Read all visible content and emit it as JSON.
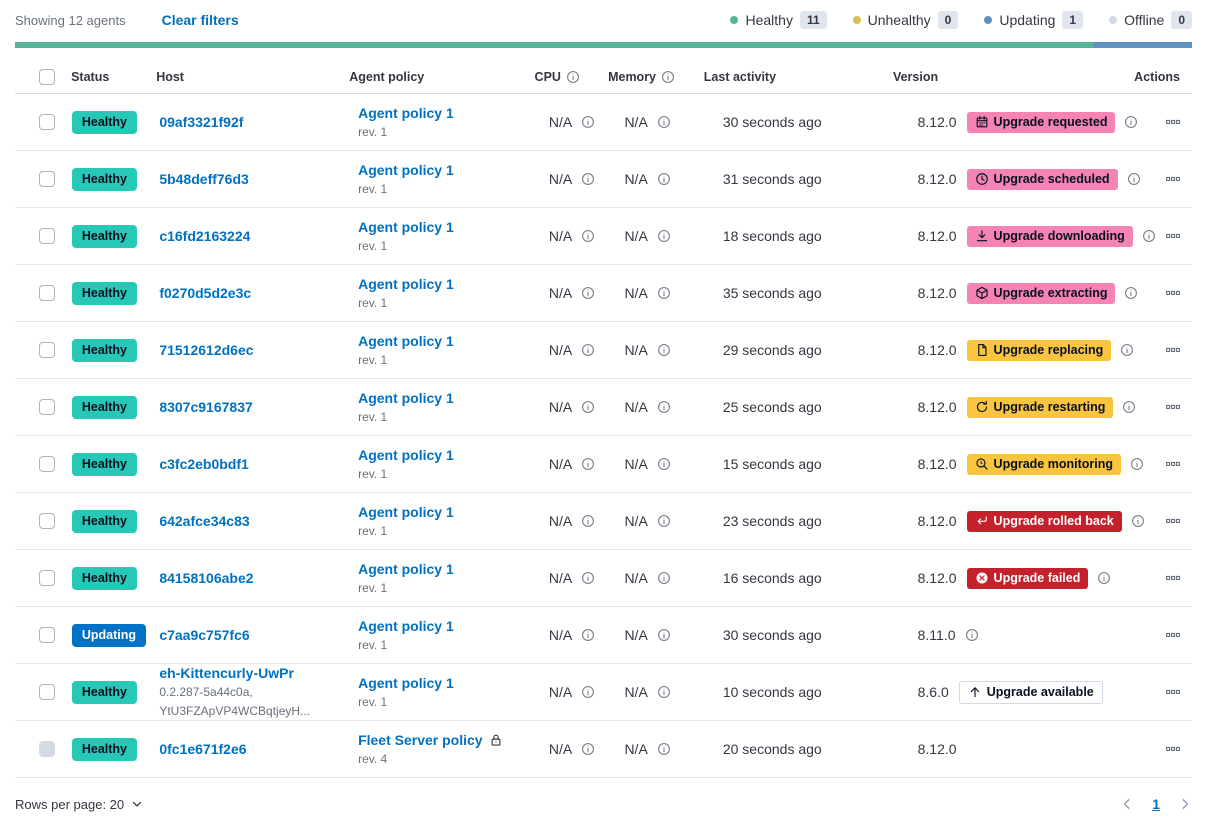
{
  "colors": {
    "text": "#343741",
    "subdued": "#69707d",
    "link": "#0071c2",
    "healthy_badge": "#28c8b9",
    "updating_badge": "#0073c8",
    "accent_badge": "#f583b3",
    "warning_badge": "#f9c440",
    "danger_badge": "#c3222c",
    "hollow_border": "#d3dae6",
    "count_badge_bg": "#e0e5ee",
    "header_border": "#d3dae6",
    "row_divider": "#e6eaf0",
    "disabled_checkbox": "#d3dae6",
    "vis_green": "#54b399",
    "vis_blue": "#6092c0"
  },
  "header": {
    "showing": "Showing 12 agents",
    "clear_filters": "Clear filters",
    "legend": [
      {
        "label": "Healthy",
        "count": "11",
        "color": "#54b399"
      },
      {
        "label": "Unhealthy",
        "count": "0",
        "color": "#d6bf57"
      },
      {
        "label": "Updating",
        "count": "1",
        "color": "#6092c0"
      },
      {
        "label": "Offline",
        "count": "0",
        "color": "#d3dae6"
      }
    ],
    "progress_segments": [
      {
        "color": "#54b399",
        "fraction": 0.9167
      },
      {
        "color": "#6092c0",
        "fraction": 0.0833
      }
    ]
  },
  "table": {
    "headers": {
      "status": "Status",
      "host": "Host",
      "policy": "Agent policy",
      "cpu": "CPU",
      "memory": "Memory",
      "last_activity": "Last activity",
      "version": "Version",
      "actions": "Actions"
    }
  },
  "agents": [
    {
      "status": "Healthy",
      "status_variant": "healthy",
      "host": "09af3321f92f",
      "host_sub": [],
      "policy": "Agent policy 1",
      "policy_rev": "rev. 1",
      "policy_locked": false,
      "cpu": "N/A",
      "memory": "N/A",
      "last_activity": "30 seconds ago",
      "version": "8.12.0",
      "upgrade_badge": {
        "label": "Upgrade requested",
        "variant": "accent",
        "icon": "calendar"
      },
      "badge_info_icon": true,
      "version_info_icon": false,
      "checkbox_disabled": false
    },
    {
      "status": "Healthy",
      "status_variant": "healthy",
      "host": "5b48deff76d3",
      "host_sub": [],
      "policy": "Agent policy 1",
      "policy_rev": "rev. 1",
      "policy_locked": false,
      "cpu": "N/A",
      "memory": "N/A",
      "last_activity": "31 seconds ago",
      "version": "8.12.0",
      "upgrade_badge": {
        "label": "Upgrade scheduled",
        "variant": "accent",
        "icon": "clock"
      },
      "badge_info_icon": true,
      "version_info_icon": false,
      "checkbox_disabled": false
    },
    {
      "status": "Healthy",
      "status_variant": "healthy",
      "host": "c16fd2163224",
      "host_sub": [],
      "policy": "Agent policy 1",
      "policy_rev": "rev. 1",
      "policy_locked": false,
      "cpu": "N/A",
      "memory": "N/A",
      "last_activity": "18 seconds ago",
      "version": "8.12.0",
      "upgrade_badge": {
        "label": "Upgrade downloading",
        "variant": "accent",
        "icon": "download"
      },
      "badge_info_icon": true,
      "version_info_icon": false,
      "checkbox_disabled": false
    },
    {
      "status": "Healthy",
      "status_variant": "healthy",
      "host": "f0270d5d2e3c",
      "host_sub": [],
      "policy": "Agent policy 1",
      "policy_rev": "rev. 1",
      "policy_locked": false,
      "cpu": "N/A",
      "memory": "N/A",
      "last_activity": "35 seconds ago",
      "version": "8.12.0",
      "upgrade_badge": {
        "label": "Upgrade extracting",
        "variant": "accent",
        "icon": "package"
      },
      "badge_info_icon": true,
      "version_info_icon": false,
      "checkbox_disabled": false
    },
    {
      "status": "Healthy",
      "status_variant": "healthy",
      "host": "71512612d6ec",
      "host_sub": [],
      "policy": "Agent policy 1",
      "policy_rev": "rev. 1",
      "policy_locked": false,
      "cpu": "N/A",
      "memory": "N/A",
      "last_activity": "29 seconds ago",
      "version": "8.12.0",
      "upgrade_badge": {
        "label": "Upgrade replacing",
        "variant": "warning",
        "icon": "copy"
      },
      "badge_info_icon": true,
      "version_info_icon": false,
      "checkbox_disabled": false
    },
    {
      "status": "Healthy",
      "status_variant": "healthy",
      "host": "8307c9167837",
      "host_sub": [],
      "policy": "Agent policy 1",
      "policy_rev": "rev. 1",
      "policy_locked": false,
      "cpu": "N/A",
      "memory": "N/A",
      "last_activity": "25 seconds ago",
      "version": "8.12.0",
      "upgrade_badge": {
        "label": "Upgrade restarting",
        "variant": "warning",
        "icon": "refresh"
      },
      "badge_info_icon": true,
      "version_info_icon": false,
      "checkbox_disabled": false
    },
    {
      "status": "Healthy",
      "status_variant": "healthy",
      "host": "c3fc2eb0bdf1",
      "host_sub": [],
      "policy": "Agent policy 1",
      "policy_rev": "rev. 1",
      "policy_locked": false,
      "cpu": "N/A",
      "memory": "N/A",
      "last_activity": "15 seconds ago",
      "version": "8.12.0",
      "upgrade_badge": {
        "label": "Upgrade monitoring",
        "variant": "warning",
        "icon": "inspect"
      },
      "badge_info_icon": true,
      "version_info_icon": false,
      "checkbox_disabled": false
    },
    {
      "status": "Healthy",
      "status_variant": "healthy",
      "host": "642afce34c83",
      "host_sub": [],
      "policy": "Agent policy 1",
      "policy_rev": "rev. 1",
      "policy_locked": false,
      "cpu": "N/A",
      "memory": "N/A",
      "last_activity": "23 seconds ago",
      "version": "8.12.0",
      "upgrade_badge": {
        "label": "Upgrade rolled back",
        "variant": "danger",
        "icon": "return"
      },
      "badge_info_icon": true,
      "version_info_icon": false,
      "checkbox_disabled": false
    },
    {
      "status": "Healthy",
      "status_variant": "healthy",
      "host": "84158106abe2",
      "host_sub": [],
      "policy": "Agent policy 1",
      "policy_rev": "rev. 1",
      "policy_locked": false,
      "cpu": "N/A",
      "memory": "N/A",
      "last_activity": "16 seconds ago",
      "version": "8.12.0",
      "upgrade_badge": {
        "label": "Upgrade failed",
        "variant": "danger",
        "icon": "error"
      },
      "badge_info_icon": true,
      "version_info_icon": false,
      "checkbox_disabled": false
    },
    {
      "status": "Updating",
      "status_variant": "updating",
      "host": "c7aa9c757fc6",
      "host_sub": [],
      "policy": "Agent policy 1",
      "policy_rev": "rev. 1",
      "policy_locked": false,
      "cpu": "N/A",
      "memory": "N/A",
      "last_activity": "30 seconds ago",
      "version": "8.11.0",
      "upgrade_badge": null,
      "badge_info_icon": false,
      "version_info_icon": true,
      "checkbox_disabled": false
    },
    {
      "status": "Healthy",
      "status_variant": "healthy",
      "host": "eh-Kittencurly-UwPr",
      "host_sub": [
        "0.2.287-5a44c0a,",
        "YtU3FZApVP4WCBqtjeyH..."
      ],
      "policy": "Agent policy 1",
      "policy_rev": "rev. 1",
      "policy_locked": false,
      "cpu": "N/A",
      "memory": "N/A",
      "last_activity": "10 seconds ago",
      "version": "8.6.0",
      "upgrade_badge": {
        "label": "Upgrade available",
        "variant": "hollow",
        "icon": "arrowUp"
      },
      "badge_info_icon": false,
      "version_info_icon": false,
      "checkbox_disabled": false
    },
    {
      "status": "Healthy",
      "status_variant": "healthy",
      "host": "0fc1e671f2e6",
      "host_sub": [],
      "policy": "Fleet Server policy",
      "policy_rev": "rev. 4",
      "policy_locked": true,
      "cpu": "N/A",
      "memory": "N/A",
      "last_activity": "20 seconds ago",
      "version": "8.12.0",
      "upgrade_badge": null,
      "badge_info_icon": false,
      "version_info_icon": false,
      "checkbox_disabled": true
    }
  ],
  "footer": {
    "rows_per_page": "Rows per page: 20",
    "page": "1"
  }
}
